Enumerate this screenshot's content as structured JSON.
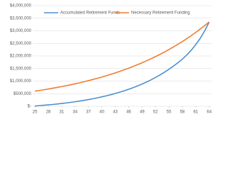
{
  "chart_data": {
    "type": "line",
    "x": [
      25,
      26,
      27,
      28,
      29,
      30,
      31,
      32,
      33,
      34,
      35,
      36,
      37,
      38,
      39,
      40,
      41,
      42,
      43,
      44,
      45,
      46,
      47,
      48,
      49,
      50,
      51,
      52,
      53,
      54,
      55,
      56,
      57,
      58,
      59,
      60,
      61,
      62,
      63,
      64
    ],
    "series": [
      {
        "name": "Accumulated Retirement Funds",
        "color": "#4e8fd0",
        "values": [
          10000,
          25000,
          40000,
          55000,
          70000,
          90000,
          110000,
          130000,
          155000,
          180000,
          205000,
          235000,
          265000,
          300000,
          335000,
          375000,
          415000,
          460000,
          510000,
          560000,
          615000,
          675000,
          740000,
          810000,
          885000,
          965000,
          1050000,
          1145000,
          1245000,
          1355000,
          1470000,
          1595000,
          1730000,
          1875000,
          2040000,
          2230000,
          2450000,
          2700000,
          3000000,
          3350000
        ]
      },
      {
        "name": "Necessary Retirement Funding",
        "color": "#ee7d31",
        "values": [
          600000,
          627000,
          655000,
          685000,
          716000,
          748000,
          782000,
          817000,
          854000,
          892000,
          933000,
          975000,
          1019000,
          1065000,
          1113000,
          1163000,
          1215000,
          1270000,
          1327000,
          1387000,
          1450000,
          1515000,
          1584000,
          1655000,
          1730000,
          1808000,
          1889000,
          1975000,
          2064000,
          2157000,
          2254000,
          2356000,
          2462000,
          2573000,
          2689000,
          2810000,
          2937000,
          3069000,
          3208000,
          3352000
        ]
      }
    ],
    "xlim": [
      24.5,
      64.5
    ],
    "xticks": [
      25,
      28,
      31,
      34,
      37,
      40,
      43,
      46,
      49,
      52,
      55,
      58,
      61,
      64
    ],
    "ylim": [
      0,
      4000000
    ],
    "yticks": [
      {
        "value": 0,
        "label": "$-"
      },
      {
        "value": 500000,
        "label": "$500,000"
      },
      {
        "value": 1000000,
        "label": "$1,000,000"
      },
      {
        "value": 1500000,
        "label": "$1,500,000"
      },
      {
        "value": 2000000,
        "label": "$2,000,000"
      },
      {
        "value": 2500000,
        "label": "$2,500,000"
      },
      {
        "value": 3000000,
        "label": "$3,000,000"
      },
      {
        "value": 3500000,
        "label": "$3,500,000"
      },
      {
        "value": 4000000,
        "label": "$4,000,000"
      }
    ],
    "grid": true
  }
}
